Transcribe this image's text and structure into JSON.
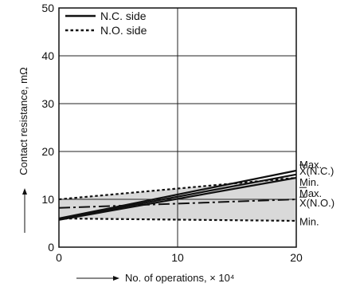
{
  "chart_data": {
    "type": "line",
    "xlabel": "No. of operations, × 10⁴",
    "ylabel": "Contact resistance, mΩ",
    "xlim": [
      0,
      20
    ],
    "ylim": [
      0,
      50
    ],
    "x_ticks": [
      "0",
      "10",
      "20"
    ],
    "y_ticks": [
      "0",
      "10",
      "20",
      "30",
      "40",
      "50"
    ],
    "grid": true,
    "legend": {
      "position": "top-left",
      "entries": [
        {
          "label": "N.C. side",
          "style": "solid"
        },
        {
          "label": "N.O. side",
          "style": "dotted"
        }
      ]
    },
    "series": [
      {
        "name": "N.C. side",
        "group": "N.C. side",
        "role": "max",
        "style": "solid",
        "x": [
          0,
          20
        ],
        "y": [
          6.0,
          16.0
        ]
      },
      {
        "name": "N.C. side",
        "group": "N.C. side",
        "role": "mean",
        "style": "solid",
        "x": [
          0,
          20
        ],
        "y": [
          5.9,
          15.2
        ]
      },
      {
        "name": "N.C. side",
        "group": "N.C. side",
        "role": "min",
        "style": "solid",
        "x": [
          0,
          20
        ],
        "y": [
          5.7,
          14.5
        ]
      },
      {
        "name": "N.O. side",
        "group": "N.O. side",
        "role": "max",
        "style": "dotted",
        "x": [
          0,
          20
        ],
        "y": [
          10.0,
          14.5
        ]
      },
      {
        "name": "N.O. side",
        "group": "N.O. side",
        "role": "mean",
        "style": "dashdot",
        "x": [
          0,
          20
        ],
        "y": [
          8.2,
          10.0
        ]
      },
      {
        "name": "N.O. side",
        "group": "N.O. side",
        "role": "min",
        "style": "dotted",
        "x": [
          0,
          20
        ],
        "y": [
          6.0,
          5.5
        ]
      }
    ],
    "band": {
      "x": [
        0,
        20
      ],
      "upper": [
        10.0,
        14.5
      ],
      "lower": [
        6.0,
        5.5
      ],
      "color": "#d9d9d9"
    },
    "annotations": [
      {
        "text": "Max.",
        "y": 17.3,
        "overline": false
      },
      {
        "text": "X(N.C.)",
        "y": 16.0,
        "overline": true
      },
      {
        "text": "Min.",
        "y": 13.7,
        "overline": false
      },
      {
        "text": "Max.",
        "y": 11.3,
        "overline": true
      },
      {
        "text": "X(N.O.)",
        "y": 9.3,
        "overline": true
      },
      {
        "text": "Min.",
        "y": 5.4,
        "overline": false
      }
    ],
    "colors": {
      "line": "#111111",
      "band": "#d9d9d9",
      "grid": "#222222"
    }
  }
}
